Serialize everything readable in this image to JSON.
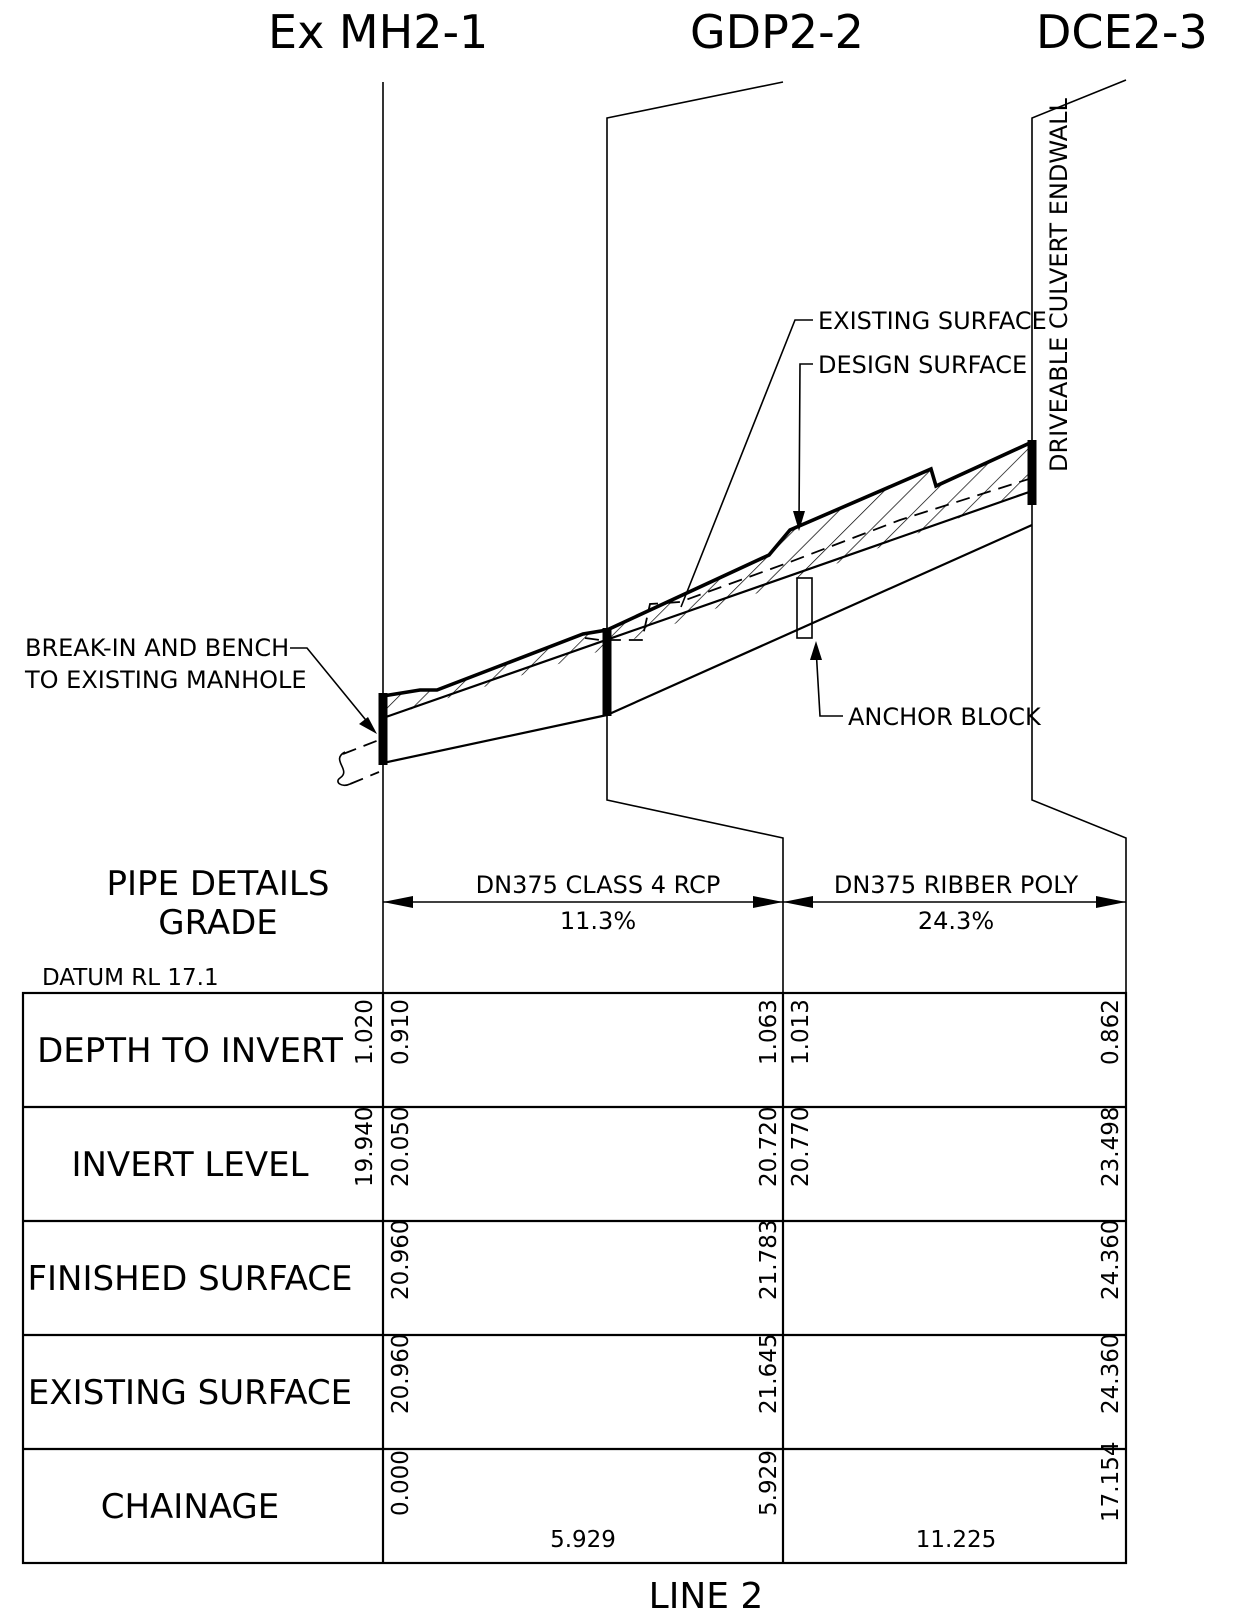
{
  "nodes": [
    {
      "id": "Ex MH2-1"
    },
    {
      "id": "GDP2-2"
    },
    {
      "id": "DCE2-3"
    }
  ],
  "callouts": {
    "existing_surface": "EXISTING SURFACE",
    "design_surface": "DESIGN SURFACE",
    "endwall": "DRIVEABLE CULVERT ENDWALL",
    "break_in_line1": "BREAK-IN AND BENCH",
    "break_in_line2": "TO EXISTING MANHOLE",
    "anchor_block": "ANCHOR BLOCK"
  },
  "pipe_details": {
    "title_line1": "PIPE DETAILS",
    "title_line2": "GRADE",
    "segments": [
      {
        "pipe": "DN375 CLASS 4 RCP",
        "grade": "11.3%"
      },
      {
        "pipe": "DN375 RIBBER POLY",
        "grade": "24.3%"
      }
    ]
  },
  "datum": "DATUM RL 17.1",
  "table": {
    "rows": [
      {
        "label": "DEPTH TO INVERT",
        "pre": "1.020",
        "s1_start": "0.910",
        "s1_end": "1.063",
        "s2_start": "1.013",
        "s2_end": "0.862"
      },
      {
        "label": "INVERT LEVEL",
        "pre": "19.940",
        "s1_start": "20.050",
        "s1_end": "20.720",
        "s2_start": "20.770",
        "s2_end": "23.498"
      },
      {
        "label": "FINISHED SURFACE",
        "s1_start": "20.960",
        "s1_end": "21.783",
        "s2_end": "24.360"
      },
      {
        "label": "EXISTING SURFACE",
        "s1_start": "20.960",
        "s1_end": "21.645",
        "s2_end": "24.360"
      },
      {
        "label": "CHAINAGE",
        "s1_start": "0.000",
        "s1_end": "5.929",
        "s2_end": "17.154",
        "s1_length": "5.929",
        "s2_length": "11.225"
      }
    ]
  },
  "title": "LINE 2"
}
